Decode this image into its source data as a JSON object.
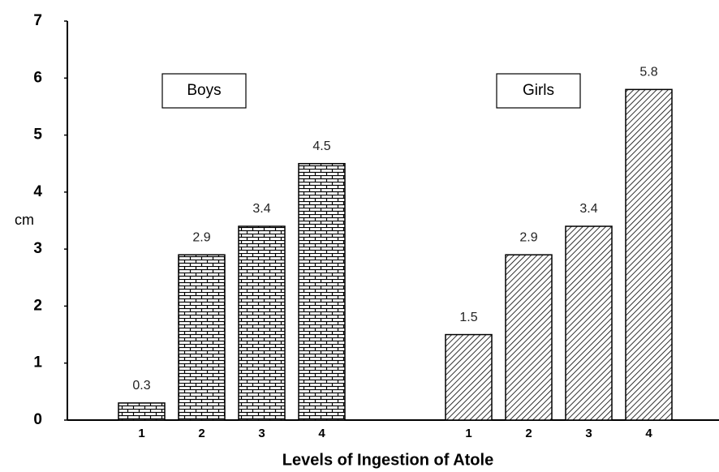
{
  "chart_data": {
    "type": "bar",
    "y_label": "cm",
    "x_label": "Levels of Ingestion of Atole",
    "categories": [
      "1",
      "2",
      "3",
      "4"
    ],
    "series": [
      {
        "name": "Boys",
        "pattern": "brick",
        "color": "#000000",
        "values": [
          0.3,
          2.9,
          3.4,
          4.5
        ]
      },
      {
        "name": "Girls",
        "pattern": "diagonal",
        "color": "#000000",
        "values": [
          1.5,
          2.9,
          3.4,
          5.8
        ]
      }
    ],
    "ylim": [
      0,
      7
    ],
    "yticks": [
      0,
      1,
      2,
      3,
      4,
      5,
      6,
      7
    ],
    "grid": false
  }
}
